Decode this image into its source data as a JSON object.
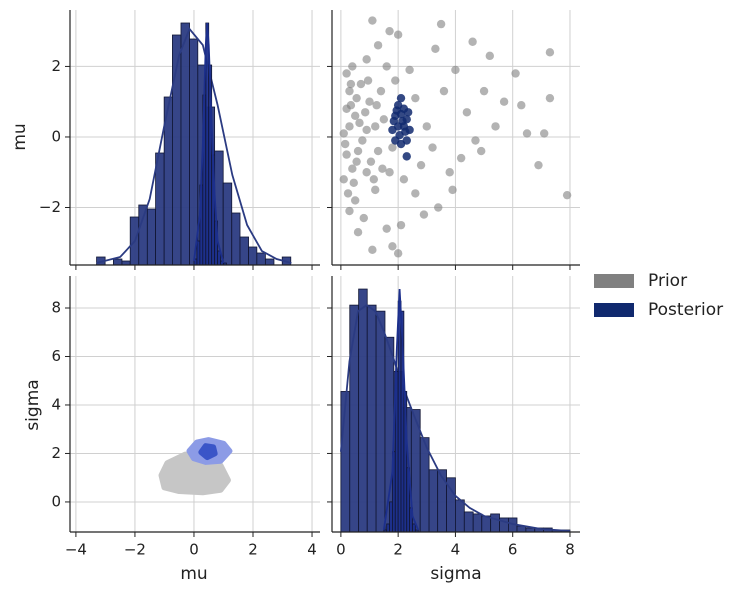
{
  "chart_data": {
    "type": "pairplot",
    "variables": [
      "mu",
      "sigma"
    ],
    "grid": true,
    "count_lim": [
      0,
      127.5
    ],
    "axes": [
      {
        "xlim": [
          -4.2,
          4.27
        ],
        "xticks": [
          {
            "value": -4,
            "label": "−4"
          },
          {
            "value": -2,
            "label": "−2"
          },
          0,
          2,
          4
        ],
        "ylim": [
          -3.63,
          3.6
        ],
        "yticks": [
          {
            "value": -2,
            "label": "−2"
          },
          0,
          2
        ]
      },
      {
        "xlim": [
          -0.31,
          8.35
        ],
        "xticks": [
          0,
          2,
          4,
          6,
          8
        ],
        "ylim": [
          -1.24,
          9.32
        ],
        "yticks": [
          0,
          2,
          4,
          6,
          8
        ]
      }
    ],
    "series": [
      {
        "name": "Prior",
        "color": "#808080",
        "hist_color": "#2b3b82",
        "hist": [
          {
            "bins": [
              -3.3,
              -3.01,
              -2.73,
              -2.44,
              -2.16,
              -1.87,
              -1.58,
              -1.3,
              -1.01,
              -0.73,
              -0.44,
              -0.15,
              0.13,
              0.42,
              0.7,
              0.99,
              1.28,
              1.56,
              1.85,
              2.13,
              2.42,
              2.71,
              2.99,
              3.28
            ],
            "counts": [
              4,
              0,
              3,
              2,
              24,
              30,
              28,
              56,
              84,
              115,
              121,
              113,
              100,
              79,
              57,
              41,
              26,
              14,
              9,
              6,
              3,
              0,
              4
            ],
            "kde_x": [
              -3.3,
              -2.5,
              -2,
              -1.5,
              -1,
              -0.5,
              -0.15,
              0.3,
              0.8,
              1.3,
              1.8,
              2.3,
              2.8,
              3.3
            ],
            "kde_y": [
              1,
              4,
              12,
              33,
              70,
              105,
              118,
              110,
              80,
              45,
              20,
              7,
              3,
              1
            ]
          },
          {
            "bins": [
              0,
              0.31,
              0.62,
              0.92,
              1.23,
              1.54,
              1.85,
              2.15,
              2.46,
              2.77,
              3.08,
              3.38,
              3.69,
              4.0,
              4.31,
              4.62,
              4.92,
              5.23,
              5.54,
              5.85,
              6.15,
              6.46,
              6.77,
              7.08,
              7.38,
              7.69,
              8.0
            ],
            "counts": [
              70,
              113,
              121,
              113,
              110,
              97,
              80,
              62,
              61,
              47,
              31,
              31,
              27,
              16,
              10,
              9,
              8,
              9,
              7,
              7,
              3,
              2,
              2,
              2,
              1,
              1
            ],
            "kde_x": [
              0,
              0.3,
              0.6,
              0.9,
              1.2,
              1.5,
              1.8,
              2.1,
              2.5,
              3,
              3.5,
              4,
              4.5,
              5,
              6,
              7,
              8
            ],
            "kde_y": [
              40,
              85,
              110,
              113,
              110,
              100,
              88,
              75,
              60,
              42,
              28,
              18,
              12,
              8,
              4,
              1.5,
              0.5
            ]
          }
        ],
        "scatter": {
          "sigma": [
            1.1,
            1.7,
            2.0,
            3.5,
            3.3,
            4.6,
            5.2,
            6.1,
            7.3,
            7.3,
            7.9,
            6.9,
            6.5,
            7.1,
            5.7,
            6.3,
            5.0,
            4.7,
            4.2,
            3.9,
            3.4,
            2.9,
            2.1,
            1.8,
            1.1,
            2.0,
            1.6,
            0.6,
            0.3,
            0.5,
            0.1,
            0.2,
            0.1,
            0.2,
            0.3,
            0.2,
            0.4,
            0.9,
            1.3,
            0.7,
            0.5,
            0.9,
            0.6,
            0.9,
            1.2,
            1.0,
            1.3,
            1.5,
            1.4,
            1.7,
            2.6,
            2.8,
            3.0,
            2.4,
            2.6,
            3.6,
            3.8,
            4.4,
            4.0,
            2.2,
            1.9,
            1.6,
            0.8,
            0.4,
            1.2,
            1.8,
            5.4,
            4.9,
            3.2,
            0.3,
            0.15,
            0.35,
            0.55,
            0.75,
            0.85,
            1.05,
            0.45,
            0.65,
            1.25,
            0.25,
            1.45,
            0.95,
            0.35,
            1.15,
            0.55
          ],
          "mu": [
            3.3,
            3.0,
            2.9,
            3.2,
            2.5,
            2.7,
            2.3,
            1.8,
            2.4,
            1.1,
            -1.65,
            -0.8,
            0.1,
            0.1,
            1.0,
            0.9,
            1.3,
            -0.1,
            -0.6,
            -1.5,
            -2.0,
            -2.2,
            -2.5,
            -3.1,
            -3.2,
            -3.3,
            -2.6,
            -2.7,
            -2.1,
            -1.8,
            -1.2,
            -0.5,
            0.1,
            0.8,
            1.3,
            1.8,
            2.0,
            2.2,
            2.6,
            1.5,
            0.6,
            0.2,
            -0.4,
            -1.0,
            -1.5,
            1.0,
            -0.4,
            0.5,
            1.3,
            -1.0,
            1.1,
            -0.8,
            0.3,
            1.9,
            -1.6,
            1.3,
            -1.0,
            0.7,
            1.9,
            -1.2,
            1.6,
            2.0,
            -2.3,
            -0.9,
            0.3,
            -0.3,
            0.3,
            -0.4,
            -0.3,
            0.3,
            -0.2,
            0.9,
            1.1,
            -0.1,
            0.7,
            -0.7,
            -1.3,
            0.4,
            0.9,
            -1.6,
            -0.9,
            1.6,
            1.5,
            -1.2,
            -0.7
          ]
        },
        "kde2d": [
          {
            "mu": [
              -1.1,
              -1.0,
              -0.5,
              0.3,
              0.9,
              1.15,
              0.9,
              0.4,
              -0.3,
              -0.9
            ],
            "sigma": [
              1.1,
              0.6,
              0.45,
              0.4,
              0.5,
              0.9,
              1.5,
              1.95,
              1.95,
              1.6
            ],
            "color": "#c6c6c6"
          }
        ]
      },
      {
        "name": "Posterior",
        "color": "#10296e",
        "hist_color": "#1c2f8c",
        "hist": [
          {
            "bins": [
              0.0,
              0.1,
              0.2,
              0.3,
              0.4,
              0.5,
              0.6,
              0.7,
              0.8,
              0.9,
              1.0,
              1.1
            ],
            "counts": [
              3,
              12,
              40,
              85,
              121,
              100,
              55,
              22,
              7,
              2,
              1
            ],
            "kde_x": [
              0.0,
              0.2,
              0.3,
              0.4,
              0.45,
              0.5,
              0.6,
              0.7,
              0.8,
              1.0
            ],
            "kde_y": [
              2,
              25,
              60,
              110,
              121,
              110,
              70,
              35,
              12,
              1
            ]
          },
          {
            "bins": [
              1.5,
              1.6,
              1.7,
              1.8,
              1.9,
              2.0,
              2.1,
              2.2,
              2.3,
              2.4,
              2.5,
              2.6,
              2.7
            ],
            "counts": [
              1,
              4,
              15,
              40,
              80,
              115,
              110,
              70,
              32,
              12,
              4,
              1
            ],
            "kde_x": [
              1.5,
              1.8,
              1.95,
              2.05,
              2.15,
              2.3,
              2.5,
              2.7
            ],
            "kde_y": [
              1,
              30,
              90,
              121,
              95,
              45,
              8,
              1
            ]
          }
        ],
        "scatter": {
          "sigma": [
            1.8,
            1.9,
            2.0,
            2.1,
            2.2,
            2.3,
            2.4,
            2.3,
            2.1,
            1.9,
            1.85,
            2.0,
            2.15,
            2.05,
            2.25,
            1.95,
            2.35,
            2.1,
            2.2,
            2.3
          ],
          "mu": [
            0.2,
            0.6,
            0.9,
            1.1,
            0.8,
            0.5,
            0.2,
            -0.1,
            -0.2,
            -0.1,
            0.45,
            0.3,
            0.45,
            0.05,
            0.15,
            0.75,
            0.7,
            0.65,
            0.3,
            -0.55
          ]
        },
        "kde2d": [
          {
            "mu": [
              -0.15,
              0.1,
              0.5,
              1.0,
              1.2,
              0.9,
              0.4,
              0.0
            ],
            "sigma": [
              2.1,
              2.45,
              2.55,
              2.4,
              2.1,
              1.7,
              1.65,
              1.8
            ],
            "color": "#8c9be6"
          },
          {
            "mu": [
              0.25,
              0.4,
              0.65,
              0.7,
              0.45
            ],
            "sigma": [
              2.05,
              2.3,
              2.25,
              2.0,
              1.85
            ],
            "color": "#3a55c8"
          }
        ]
      }
    ]
  }
}
